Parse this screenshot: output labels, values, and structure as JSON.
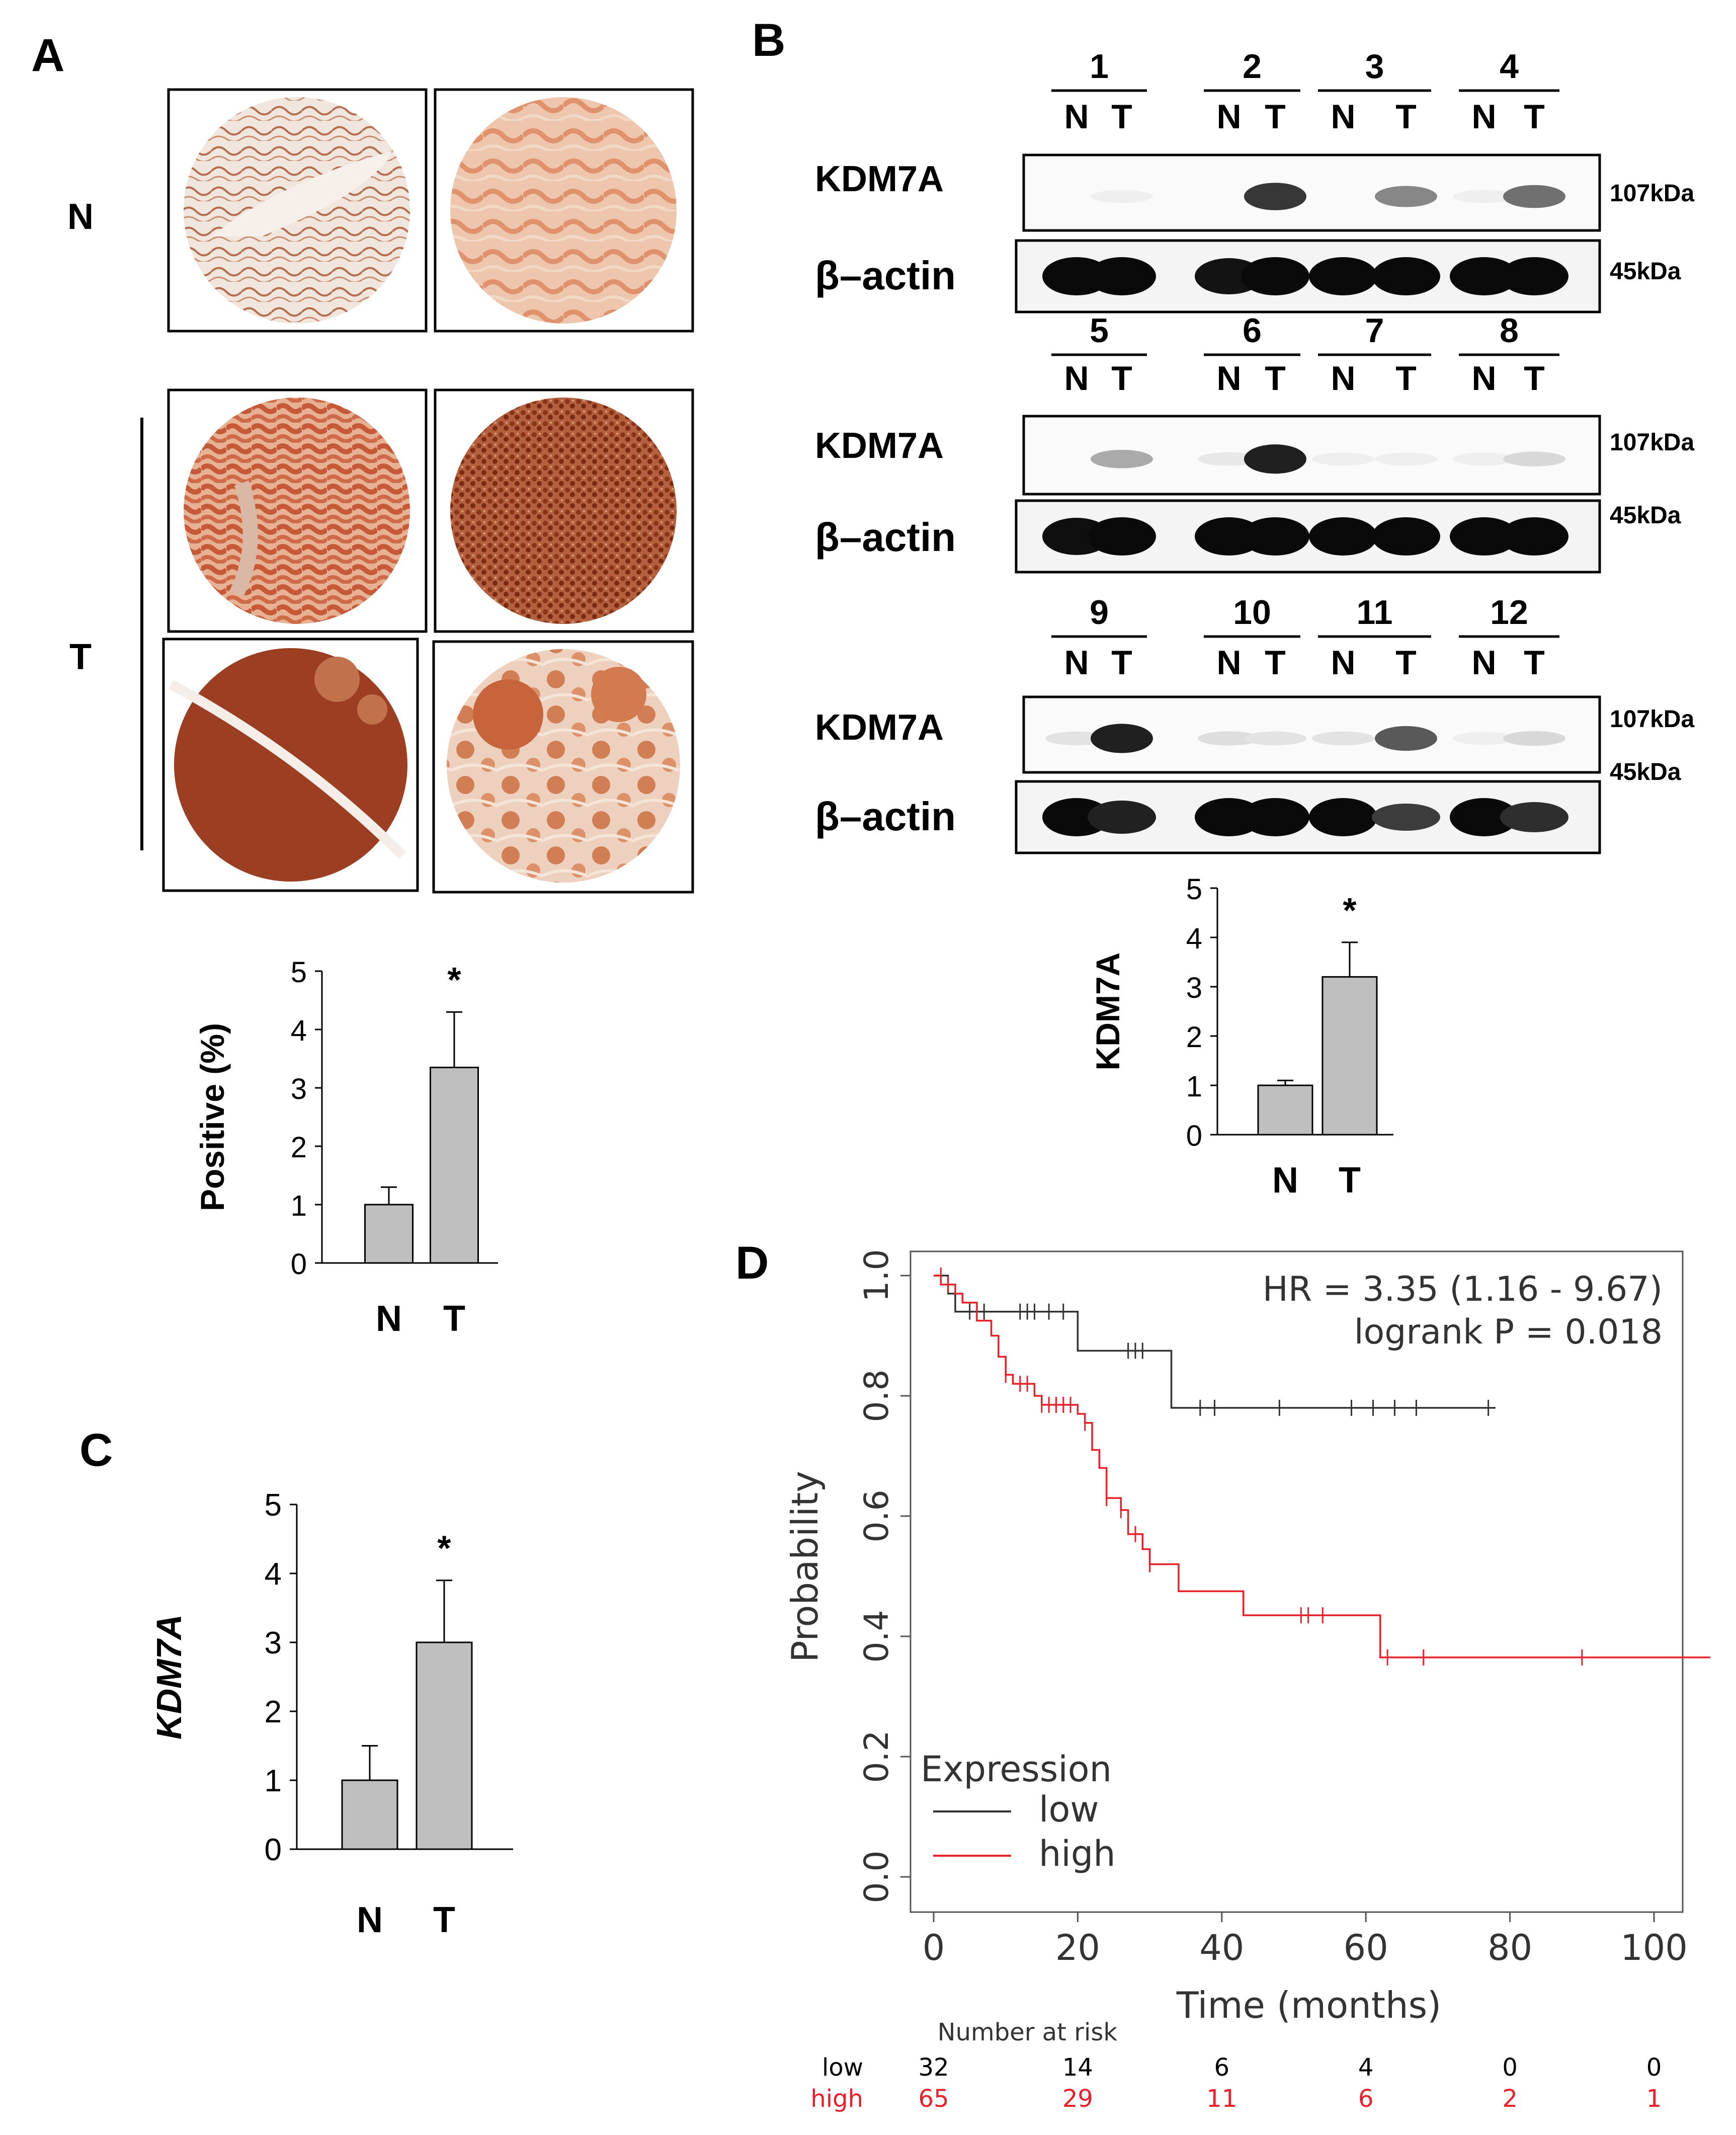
{
  "panels": {
    "a": "A",
    "b": "B",
    "c": "C",
    "d": "D"
  },
  "panel_a": {
    "row_label_n": "N",
    "row_label_t": "T",
    "image_grid": [
      {
        "row": "N",
        "stain": "light"
      },
      {
        "row": "N",
        "stain": "light-orange"
      },
      {
        "row": "T",
        "stain": "moderate"
      },
      {
        "row": "T",
        "stain": "strong-granular"
      },
      {
        "row": "T",
        "stain": "very-strong"
      },
      {
        "row": "T",
        "stain": "mixed"
      }
    ],
    "colors": {
      "tissue_light": "#f0e4dc",
      "tissue_orange": "#e6a07e",
      "tissue_strong": "#c1583a",
      "tissue_dark": "#8c3018"
    }
  },
  "panel_b": {
    "samples": [
      "1",
      "2",
      "3",
      "4",
      "5",
      "6",
      "7",
      "8",
      "9",
      "10",
      "11",
      "12"
    ],
    "lane_n": "N",
    "lane_t": "T",
    "row_label_kdm7a": "KDM7A",
    "row_label_actin": "β–actin",
    "mw_kdm7a": "107kDa",
    "mw_actin": "45kDa"
  },
  "chart_data": [
    {
      "id": "panel-a-bar",
      "type": "bar",
      "categories": [
        "N",
        "T"
      ],
      "values": [
        1.0,
        3.35
      ],
      "errors": [
        0.3,
        0.95
      ],
      "significance": "*",
      "ylabel": "Positive (%)",
      "yticks": [
        "0",
        "1",
        "2",
        "3",
        "4",
        "5"
      ],
      "ylim": [
        0,
        5
      ],
      "bar_color": "#bfbfbf"
    },
    {
      "id": "panel-b-bar",
      "type": "bar",
      "categories": [
        "N",
        "T"
      ],
      "values": [
        1.0,
        3.2
      ],
      "errors": [
        0.1,
        0.7
      ],
      "significance": "*",
      "ylabel": "KDM7A",
      "yticks": [
        "0",
        "1",
        "2",
        "3",
        "4",
        "5"
      ],
      "ylim": [
        0,
        5
      ],
      "bar_color": "#bfbfbf"
    },
    {
      "id": "panel-c-bar",
      "type": "bar",
      "categories": [
        "N",
        "T"
      ],
      "values": [
        1.0,
        3.0
      ],
      "errors": [
        0.5,
        0.9
      ],
      "significance": "*",
      "ylabel": "KDM7A",
      "yticks": [
        "0",
        "1",
        "2",
        "3",
        "4",
        "5"
      ],
      "ylim": [
        0,
        5
      ],
      "bar_color": "#bfbfbf"
    },
    {
      "id": "panel-d-km",
      "type": "line",
      "xlabel": "Time (months)",
      "ylabel": "Probability",
      "xlim": [
        0,
        110
      ],
      "ylim": [
        0,
        1
      ],
      "xticks": [
        "0",
        "20",
        "40",
        "60",
        "80",
        "100"
      ],
      "yticks": [
        "0.0",
        "0.2",
        "0.4",
        "0.6",
        "0.8",
        "1.0"
      ],
      "hr_text": "HR = 3.35 (1.16 - 9.67)",
      "logrank_text": "logrank P = 0.018",
      "legend_title": "Expression",
      "legend_placement": "bottom-left",
      "series": [
        {
          "name": "low",
          "color": "#333333",
          "steps": [
            [
              0,
              1.0
            ],
            [
              2,
              0.97
            ],
            [
              3,
              0.94
            ],
            [
              20,
              0.94
            ],
            [
              20,
              0.875
            ],
            [
              33,
              0.875
            ],
            [
              33,
              0.78
            ],
            [
              78,
              0.78
            ]
          ],
          "censors": [
            [
              5,
              0.94
            ],
            [
              7,
              0.94
            ],
            [
              12,
              0.94
            ],
            [
              13,
              0.94
            ],
            [
              14,
              0.94
            ],
            [
              16,
              0.94
            ],
            [
              18,
              0.94
            ],
            [
              27,
              0.875
            ],
            [
              28,
              0.875
            ],
            [
              29,
              0.875
            ],
            [
              37,
              0.78
            ],
            [
              39,
              0.78
            ],
            [
              48,
              0.78
            ],
            [
              58,
              0.78
            ],
            [
              61,
              0.78
            ],
            [
              64,
              0.78
            ],
            [
              67,
              0.78
            ],
            [
              77,
              0.78
            ]
          ]
        },
        {
          "name": "high",
          "color": "#e8202a",
          "steps": [
            [
              0,
              1.0
            ],
            [
              1,
              0.985
            ],
            [
              3,
              0.97
            ],
            [
              4,
              0.955
            ],
            [
              6,
              0.925
            ],
            [
              8,
              0.9
            ],
            [
              9,
              0.865
            ],
            [
              10,
              0.835
            ],
            [
              11,
              0.82
            ],
            [
              14,
              0.8
            ],
            [
              15,
              0.785
            ],
            [
              20,
              0.785
            ],
            [
              20,
              0.77
            ],
            [
              21,
              0.755
            ],
            [
              22,
              0.71
            ],
            [
              23,
              0.68
            ],
            [
              24,
              0.63
            ],
            [
              26,
              0.61
            ],
            [
              27,
              0.57
            ],
            [
              29,
              0.545
            ],
            [
              30,
              0.52
            ],
            [
              33,
              0.52
            ],
            [
              34,
              0.475
            ],
            [
              42,
              0.475
            ],
            [
              43,
              0.435
            ],
            [
              62,
              0.435
            ],
            [
              62,
              0.365
            ],
            [
              110,
              0.365
            ]
          ],
          "censors": [
            [
              1,
              1.0
            ],
            [
              2,
              0.985
            ],
            [
              10,
              0.835
            ],
            [
              12,
              0.82
            ],
            [
              13,
              0.82
            ],
            [
              15,
              0.785
            ],
            [
              16,
              0.785
            ],
            [
              17,
              0.785
            ],
            [
              18,
              0.785
            ],
            [
              19,
              0.785
            ],
            [
              21,
              0.755
            ],
            [
              24,
              0.63
            ],
            [
              26,
              0.61
            ],
            [
              28,
              0.57
            ],
            [
              30,
              0.52
            ],
            [
              51,
              0.435
            ],
            [
              52,
              0.435
            ],
            [
              54,
              0.435
            ],
            [
              63,
              0.365
            ],
            [
              68,
              0.365
            ],
            [
              90,
              0.365
            ],
            [
              110,
              0.365
            ]
          ]
        }
      ],
      "risk_table": {
        "title": "Number at risk",
        "rows": [
          {
            "label": "low",
            "color": "#000000",
            "values": [
              "32",
              "14",
              "6",
              "4",
              "0",
              "0"
            ]
          },
          {
            "label": "high",
            "color": "#e8202a",
            "values": [
              "65",
              "29",
              "11",
              "6",
              "2",
              "1"
            ]
          }
        ]
      }
    }
  ]
}
